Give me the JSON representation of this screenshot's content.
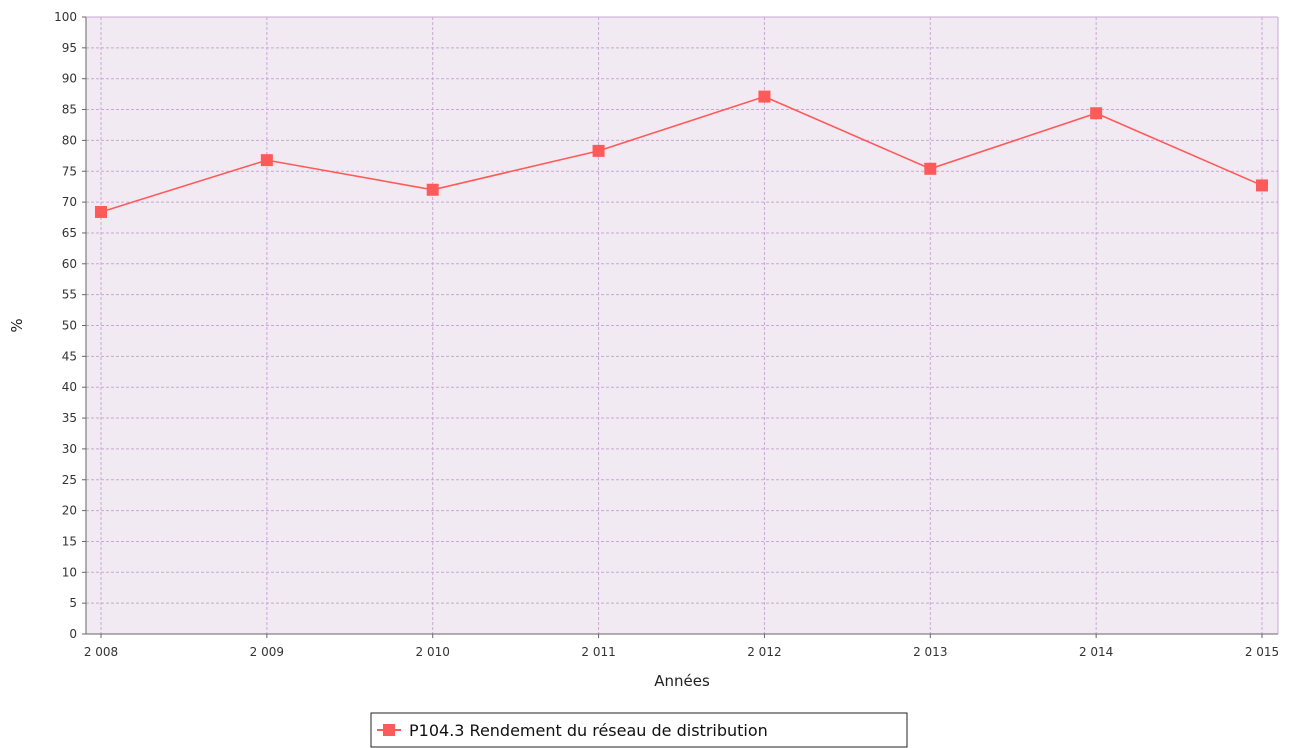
{
  "chart_data": {
    "type": "line",
    "title": "",
    "xlabel": "Années",
    "ylabel": "%",
    "categories": [
      "2 008",
      "2 009",
      "2 010",
      "2 011",
      "2 012",
      "2 013",
      "2 014",
      "2 015"
    ],
    "series": [
      {
        "name": "P104.3 Rendement du réseau de distribution",
        "values": [
          68.4,
          76.8,
          72.0,
          78.3,
          87.1,
          75.4,
          84.4,
          72.7
        ]
      }
    ],
    "ylim": [
      0,
      100
    ],
    "ytick_step": 5,
    "grid": true,
    "legend_position": "bottom-center",
    "colors": {
      "plot_background": "#f2eaf2",
      "grid": "#c8a8d4",
      "series": "#ff5a5a",
      "axis": "#666666"
    }
  }
}
